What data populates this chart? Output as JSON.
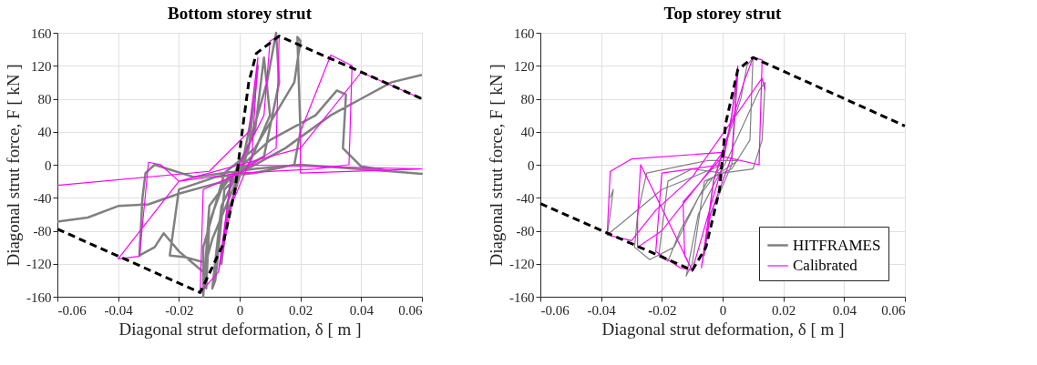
{
  "chart_data": [
    {
      "type": "line",
      "title": "Bottom storey strut",
      "xlabel": "Diagonal strut deformation, δ [ m ]",
      "ylabel": "Diagonal strut force, F [ kN ]",
      "xlim": [
        -0.06,
        0.06
      ],
      "xticks": [
        -0.06,
        -0.04,
        -0.02,
        0,
        0.02,
        0.04,
        0.06
      ],
      "ylim": [
        -160,
        160
      ],
      "yticks": [
        -160,
        -120,
        -80,
        -40,
        0,
        40,
        80,
        120,
        160
      ],
      "grid": true,
      "legend": false,
      "series": [
        {
          "color": "#808080",
          "line_style": "solid",
          "x": [
            -0.06,
            -0.05,
            -0.04,
            -0.03,
            -0.02,
            -0.01,
            0,
            0.004,
            0.006,
            0.003,
            -0.004,
            -0.006,
            -0.003,
            0.005,
            0.008,
            0.01,
            0.003,
            -0.005,
            -0.008,
            -0.009,
            -0.006,
            0.002,
            0.009,
            0.012,
            0.013,
            0.008,
            -0.002,
            -0.01,
            -0.012,
            -0.012,
            -0.005,
            0.005,
            0.018,
            0.02,
            0.019,
            0.02,
            0.018,
            0.005,
            -0.008,
            -0.02,
            -0.023,
            -0.018,
            -0.012,
            -0.011,
            -0.01,
            -0.005,
            0.01,
            0.025,
            0.032,
            0.035,
            0.034,
            0.04,
            0.05,
            0.06,
            0.05,
            0.02,
            0.005,
            -0.015,
            -0.028,
            -0.031,
            -0.032,
            -0.033,
            -0.028,
            -0.025,
            -0.02,
            -0.012,
            -0.009,
            0,
            0.015,
            0.03,
            0.04,
            0.05,
            0.06
          ],
          "values": [
            -69,
            -64,
            -50,
            -48,
            -35,
            -25,
            -15,
            60,
            120,
            20,
            -60,
            -120,
            -20,
            40,
            130,
            60,
            0,
            -30,
            -140,
            -150,
            -50,
            10,
            100,
            160,
            100,
            10,
            -10,
            -50,
            -160,
            -100,
            -10,
            20,
            100,
            150,
            155,
            40,
            0,
            -10,
            -15,
            -30,
            -110,
            -112,
            -118,
            -150,
            -70,
            -20,
            30,
            60,
            90,
            85,
            20,
            -2,
            -8,
            -11,
            -8,
            0,
            -5,
            -15,
            0,
            -10,
            -40,
            -110,
            -100,
            -83,
            -105,
            -130,
            -90,
            -10,
            20,
            60,
            80,
            100,
            109
          ]
        },
        {
          "color": "#ff00ff",
          "line_style": "solid",
          "x": [
            -0.06,
            -0.01,
            0.003,
            0.006,
            0.004,
            -0.004,
            -0.007,
            -0.003,
            0.008,
            0.01,
            0.013,
            0.012,
            0,
            -0.012,
            -0.013,
            -0.007,
            0,
            0.06,
            0.02,
            0.02,
            0.03,
            0.037,
            0.036,
            0.025,
            0,
            -0.02,
            -0.026,
            -0.03,
            -0.033,
            -0.04,
            -0.02,
            0,
            0.02,
            0.04,
            0.06
          ],
          "values": [
            -25,
            -8,
            40,
            130,
            10,
            -60,
            -130,
            -20,
            60,
            150,
            156,
            20,
            -10,
            -30,
            -155,
            -130,
            0,
            -5,
            -10,
            40,
            133,
            120,
            0,
            -5,
            -10,
            -20,
            0,
            3,
            -111,
            -114,
            -20,
            0,
            20,
            112,
            80
          ]
        },
        {
          "color": "#000000",
          "line_style": "dashed",
          "x": [
            -0.06,
            -0.013,
            -0.0055,
            -0.0015,
            0.001,
            0.003,
            0.0055,
            0.013,
            0.06
          ],
          "values": [
            -78,
            -155,
            -97,
            -30,
            45,
            100,
            135,
            156,
            80
          ]
        }
      ]
    },
    {
      "type": "line",
      "title": "Top storey strut",
      "xlabel": "Diagonal strut deformation, δ [ m ]",
      "ylabel": "Diagonal strut force, F [ kN ]",
      "xlim": [
        -0.06,
        0.06
      ],
      "xticks": [
        -0.06,
        -0.04,
        -0.02,
        0,
        0.02,
        0.04,
        0.06
      ],
      "ylim": [
        -160,
        160
      ],
      "yticks": [
        -160,
        -120,
        -80,
        -40,
        0,
        40,
        80,
        120,
        160
      ],
      "grid": true,
      "legend": "bottom right",
      "series": [
        {
          "name": "HITFRAMES",
          "color": "#808080",
          "line_style": "solid",
          "x": [
            0,
            0.003,
            0.005,
            0.003,
            -0.004,
            -0.006,
            -0.003,
            0.006,
            0.008,
            0.01,
            0.009,
            0.003,
            -0.006,
            -0.01,
            -0.012,
            -0.008,
            0.002,
            0.012,
            0.014,
            0.013,
            0.01,
            0,
            -0.01,
            -0.018,
            -0.021,
            -0.018,
            -0.014,
            -0.005,
            0.005,
            -0.005,
            -0.025,
            -0.028,
            -0.029,
            -0.024,
            -0.016,
            -0.008,
            0,
            -0.02,
            -0.033,
            -0.038,
            -0.037,
            -0.036,
            -0.037
          ],
          "values": [
            0,
            60,
            110,
            0,
            -60,
            -110,
            -20,
            80,
            120,
            130,
            30,
            -5,
            -20,
            -120,
            -135,
            -60,
            10,
            90,
            100,
            30,
            -5,
            -10,
            -5,
            -20,
            -110,
            -117,
            -80,
            -20,
            5,
            5,
            -10,
            -60,
            -100,
            -115,
            -100,
            -40,
            0,
            -30,
            -70,
            -85,
            -60,
            -30,
            -40
          ]
        },
        {
          "name": "Calibrated",
          "color": "#ff00ff",
          "line_style": "solid",
          "x": [
            0,
            0.003,
            0.005,
            0.003,
            -0.004,
            -0.007,
            -0.003,
            0.007,
            0.01,
            0.013,
            0.012,
            0,
            -0.013,
            -0.0125,
            -0.01,
            0,
            -0.02,
            -0.022,
            -0.014,
            -0.01,
            -0.027,
            -0.028,
            -0.028,
            -0.02,
            -0.005,
            0,
            -0.03,
            -0.037,
            -0.038,
            -0.03,
            -0.022,
            -0.01,
            0.013,
            0.014
          ],
          "values": [
            0,
            60,
            120,
            10,
            -60,
            -125,
            -20,
            100,
            130,
            127,
            0,
            10,
            -45,
            -110,
            -128,
            0,
            -10,
            -105,
            -125,
            -128,
            0,
            -65,
            -100,
            -80,
            -10,
            15,
            7,
            -8,
            -85,
            -92,
            -55,
            -15,
            105,
            90
          ]
        },
        {
          "color": "#000000",
          "line_style": "dashed",
          "x": [
            -0.06,
            -0.01,
            -0.0055,
            -0.001,
            0.001,
            0.005,
            0.01,
            0.06
          ],
          "values": [
            -47,
            -128,
            -100,
            -30,
            50,
            115,
            130,
            47
          ]
        }
      ]
    }
  ]
}
